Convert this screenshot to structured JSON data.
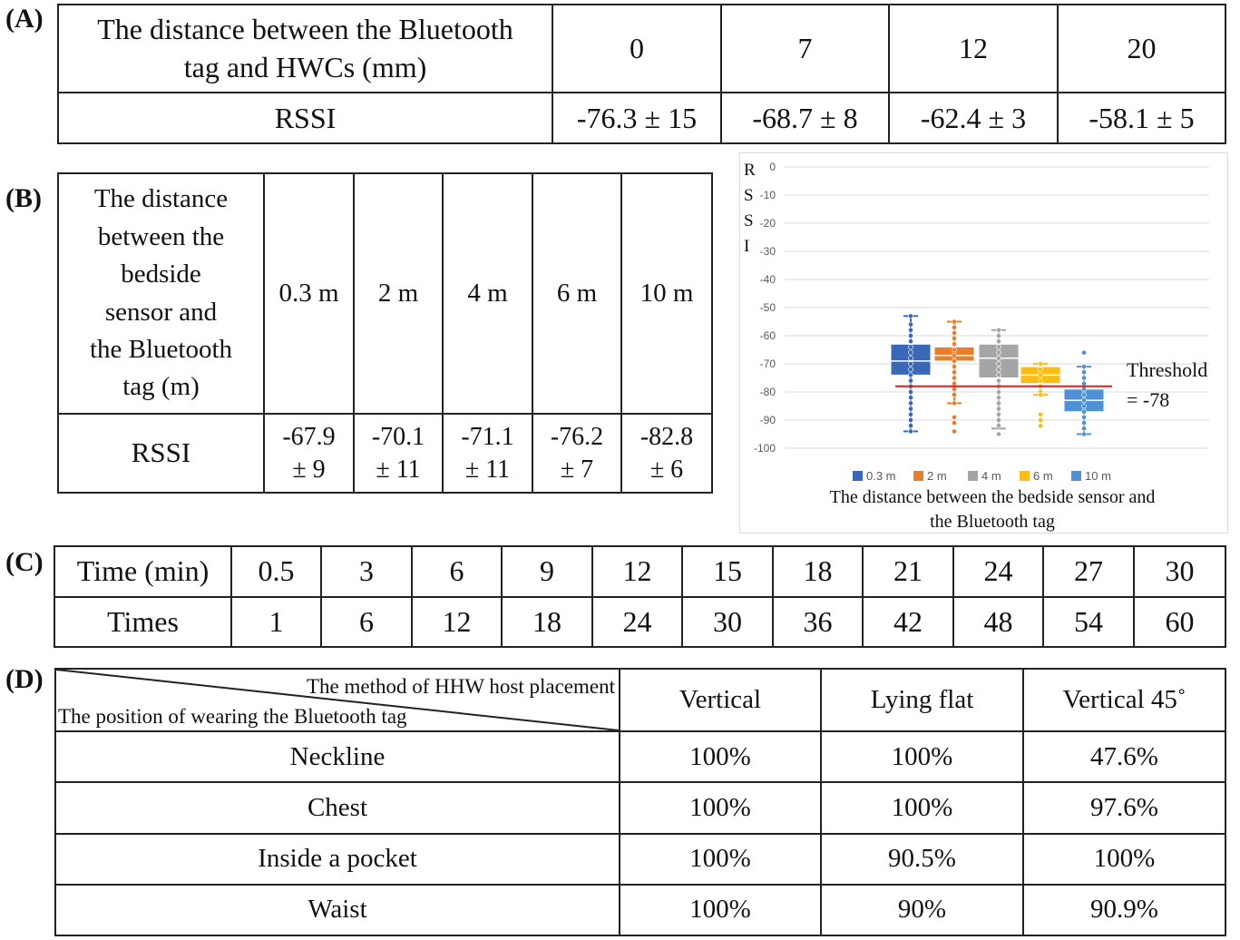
{
  "panels": {
    "a": "(A)",
    "b": "(B)",
    "c": "(C)",
    "d": "(D)"
  },
  "table_a": {
    "header_line1": "The distance between the Bluetooth",
    "header_line2": "tag and HWCs (mm)",
    "distances": [
      "0",
      "7",
      "12",
      "20"
    ],
    "row_label": "RSSI",
    "rssi": [
      "-76.3 ± 15",
      "-68.7 ± 8",
      "-62.4 ± 3",
      "-58.1 ± 5"
    ]
  },
  "table_b": {
    "header_lines": [
      "The distance",
      "between the",
      "bedside",
      "sensor and",
      "the Bluetooth",
      "tag (m)"
    ],
    "distances": [
      "0.3 m",
      "2 m",
      "4 m",
      "6 m",
      "10 m"
    ],
    "row_label": "RSSI",
    "rssi_mean": [
      "-67.9",
      "-70.1",
      "-71.1",
      "-76.2",
      "-82.8"
    ],
    "rssi_sd": [
      "± 9",
      "± 11",
      "± 11",
      "± 7",
      "± 6"
    ]
  },
  "chart_data": {
    "type": "box",
    "ylabel": "RSSI",
    "ylabel_letters": [
      "R",
      "S",
      "S",
      "I"
    ],
    "xlabel_line1": "The distance between the bedside sensor and",
    "xlabel_line2": "the Bluetooth tag",
    "ylim": [
      -100,
      0
    ],
    "yticks": [
      "0",
      "-10",
      "-20",
      "-30",
      "-40",
      "-50",
      "-60",
      "-70",
      "-80",
      "-90",
      "-100"
    ],
    "grid": true,
    "legend_position": "bottom",
    "series": [
      {
        "name": "0.3 m",
        "color": "#3a67b7",
        "q1": -74,
        "median": -69,
        "q3": -63,
        "whisker_low": -94,
        "whisker_high": -53,
        "points": [
          -53,
          -56,
          -58,
          -60,
          -62,
          -64,
          -66,
          -68,
          -70,
          -72,
          -74,
          -76,
          -78,
          -80,
          -82,
          -84,
          -86,
          -88,
          -90,
          -92,
          -94
        ]
      },
      {
        "name": "2 m",
        "color": "#e87d2c",
        "q1": -69,
        "median": -67,
        "q3": -64,
        "whisker_low": -84,
        "whisker_high": -55,
        "points": [
          -55,
          -57,
          -59,
          -61,
          -63,
          -65,
          -67,
          -69,
          -71,
          -73,
          -75,
          -77,
          -79,
          -81,
          -84,
          -89,
          -91,
          -94
        ]
      },
      {
        "name": "4 m",
        "color": "#a5a5a5",
        "q1": -75,
        "median": -68,
        "q3": -63,
        "whisker_low": -93,
        "whisker_high": -58,
        "points": [
          -58,
          -60,
          -62,
          -64,
          -66,
          -68,
          -70,
          -72,
          -74,
          -76,
          -78,
          -80,
          -82,
          -84,
          -86,
          -88,
          -90,
          -92,
          -95
        ]
      },
      {
        "name": "6 m",
        "color": "#fbbc14",
        "q1": -77,
        "median": -74,
        "q3": -71,
        "whisker_low": -81,
        "whisker_high": -70,
        "points": [
          -70,
          -72,
          -74,
          -76,
          -78,
          -80,
          -81,
          -88,
          -90,
          -92
        ]
      },
      {
        "name": "10 m",
        "color": "#4f90d6",
        "q1": -87,
        "median": -83,
        "q3": -79,
        "whisker_low": -95,
        "whisker_high": -71,
        "points": [
          -66,
          -71,
          -73,
          -75,
          -77,
          -79,
          -81,
          -83,
          -85,
          -87,
          -89,
          -91,
          -93,
          -95
        ]
      }
    ],
    "threshold": {
      "value": -78,
      "label_line1": "Threshold",
      "label_line2": "= -78",
      "color": "#e31a1c"
    }
  },
  "table_c": {
    "time_label": "Time (min)",
    "times_label": "Times",
    "time": [
      "0.5",
      "3",
      "6",
      "9",
      "12",
      "15",
      "18",
      "21",
      "24",
      "27",
      "30"
    ],
    "times": [
      "1",
      "6",
      "12",
      "18",
      "24",
      "30",
      "36",
      "42",
      "48",
      "54",
      "60"
    ]
  },
  "table_d": {
    "corner_top": "The method of HHW host placement",
    "corner_bottom": "The position of wearing the Bluetooth tag",
    "methods": [
      "Vertical",
      "Lying flat",
      "Vertical 45˚"
    ],
    "rows": [
      {
        "position": "Neckline",
        "values": [
          "100%",
          "100%",
          "47.6%"
        ]
      },
      {
        "position": "Chest",
        "values": [
          "100%",
          "100%",
          "97.6%"
        ]
      },
      {
        "position": "Inside a pocket",
        "values": [
          "100%",
          "90.5%",
          "100%"
        ]
      },
      {
        "position": "Waist",
        "values": [
          "100%",
          "90%",
          "90.9%"
        ]
      }
    ]
  }
}
